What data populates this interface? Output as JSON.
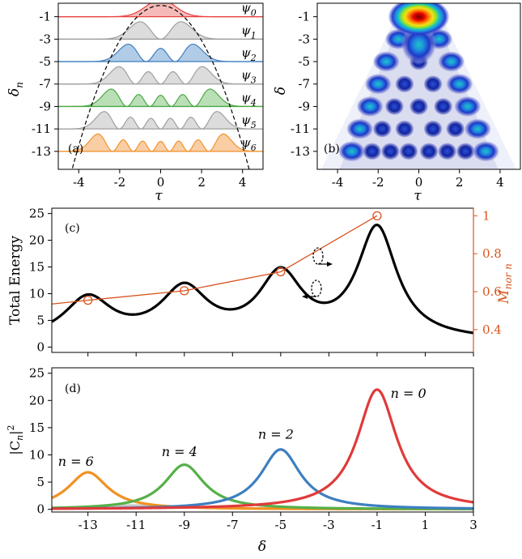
{
  "chart_data": [
    {
      "id": "a",
      "type": "line",
      "panel_label": "(a)",
      "xlabel": "τ",
      "ylabel": "δ",
      "ylabel_sub": "n",
      "xlim": [
        -5,
        5
      ],
      "ylim": [
        -14.6,
        0.2
      ],
      "xticks": [
        -4,
        -2,
        0,
        2,
        4
      ],
      "xtick_labels": [
        "-4",
        "-2",
        "0",
        "2",
        "4"
      ],
      "yticks": [
        -13,
        -11,
        -9,
        -7,
        -5,
        -3,
        -1
      ],
      "ytick_labels": [
        "-13",
        "-11",
        "-9",
        "-7",
        "-5",
        "-3",
        "-1"
      ],
      "potential": {
        "style": "dashed",
        "color": "#000000",
        "formula": "parabola",
        "vertex": [
          0,
          0
        ],
        "value_at_tau_4": -12.5
      },
      "series": [
        {
          "name": "ψ",
          "sub": "0",
          "n": 0,
          "baseline": -1,
          "color": "#e8413f",
          "fill": "#f4b3b0",
          "amplitude": 1.0
        },
        {
          "name": "ψ",
          "sub": "1",
          "n": 1,
          "baseline": -3,
          "color": "#a0a0a0",
          "fill": "#d8d8d8",
          "amplitude": 1.0
        },
        {
          "name": "ψ",
          "sub": "2",
          "n": 2,
          "baseline": -5,
          "color": "#3f7fbf",
          "fill": "#a9c6e3",
          "amplitude": 1.0
        },
        {
          "name": "ψ",
          "sub": "3",
          "n": 3,
          "baseline": -7,
          "color": "#a0a0a0",
          "fill": "#d8d8d8",
          "amplitude": 1.0
        },
        {
          "name": "ψ",
          "sub": "4",
          "n": 4,
          "baseline": -9,
          "color": "#4aa944",
          "fill": "#b3dcaf",
          "amplitude": 1.0
        },
        {
          "name": "ψ",
          "sub": "5",
          "n": 5,
          "baseline": -11,
          "color": "#a0a0a0",
          "fill": "#d8d8d8",
          "amplitude": 1.0
        },
        {
          "name": "ψ",
          "sub": "6",
          "n": 6,
          "baseline": -13,
          "color": "#f2922b",
          "fill": "#f8c99a",
          "amplitude": 1.0
        }
      ]
    },
    {
      "id": "b",
      "type": "heatmap",
      "panel_label": "(b)",
      "xlabel": "τ",
      "ylabel": "δ",
      "xlim": [
        -5,
        5
      ],
      "ylim": [
        -14.6,
        0.2
      ],
      "xticks": [
        -4,
        -2,
        0,
        2,
        4
      ],
      "xtick_labels": [
        "-4",
        "-2",
        "0",
        "2",
        "4"
      ],
      "yticks": [
        -13,
        -11,
        -9,
        -7,
        -5,
        -3,
        -1
      ],
      "ytick_labels": [
        "-13",
        "-11",
        "-9",
        "-7",
        "-5",
        "-3",
        "-1"
      ],
      "colormap": [
        "#ffffff",
        "#e6e6f2",
        "#9ea6d8",
        "#2a3fd0",
        "#0a2aa8",
        "#1f8be0",
        "#19c7c0",
        "#9fe020",
        "#f4e01a",
        "#ff7a00",
        "#e60000",
        "#6e0000"
      ],
      "peak": {
        "tau": 0,
        "delta": -1,
        "intensity": 1.0
      }
    },
    {
      "id": "c",
      "type": "line",
      "panel_label": "(c)",
      "xlim": [
        -14.5,
        3
      ],
      "ylim": [
        -1,
        26
      ],
      "ylabel": "Total Energy",
      "yticks": [
        0,
        5,
        10,
        15,
        20,
        25
      ],
      "ytick_labels": [
        "0",
        "5",
        "10",
        "15",
        "20",
        "25"
      ],
      "xticks": [
        -13,
        -11,
        -9,
        -7,
        -5,
        -3,
        -1,
        1,
        3
      ],
      "right_axis": {
        "label": "M",
        "label_sub": "nor n",
        "color": "#d9541e",
        "ylim": [
          0.28,
          1.04
        ],
        "yticks": [
          0.4,
          0.6,
          0.8,
          1.0
        ],
        "ytick_labels": [
          "0.4",
          "0.6",
          "0.8",
          "1"
        ]
      },
      "energy_peaks": [
        {
          "delta": -13,
          "height": 8.5,
          "width": 1.2
        },
        {
          "delta": -9,
          "height": 10.2,
          "width": 1.2
        },
        {
          "delta": -5,
          "height": 13.0,
          "width": 1.1
        },
        {
          "delta": -1,
          "height": 23.0,
          "width": 1.0
        }
      ],
      "energy_background": 1.2,
      "energy_color": "#000000",
      "m_series": {
        "color": "#d9541e",
        "x": [
          -14.5,
          -13,
          -9,
          -5,
          -1
        ],
        "y": [
          0.535,
          0.555,
          0.605,
          0.705,
          1.0
        ],
        "markers_at": [
          -13,
          -9,
          -5,
          -1
        ]
      }
    },
    {
      "id": "d",
      "type": "line",
      "panel_label": "(d)",
      "xlabel": "δ",
      "ylabel": "|C",
      "ylabel_sub": "n",
      "ylabel_tail": "|",
      "ylabel_sup": "2",
      "xlim": [
        -14.5,
        3
      ],
      "ylim": [
        -0.5,
        26
      ],
      "xticks": [
        -13,
        -11,
        -9,
        -7,
        -5,
        -3,
        -1,
        1,
        3
      ],
      "xtick_labels": [
        "-13",
        "-11",
        "-9",
        "-7",
        "-5",
        "-3",
        "-1",
        "1",
        "3"
      ],
      "yticks": [
        0,
        5,
        10,
        15,
        20,
        25
      ],
      "ytick_labels": [
        "0",
        "5",
        "10",
        "15",
        "20",
        "25"
      ],
      "series": [
        {
          "name": "n = 0",
          "center": -1,
          "peak": 22.0,
          "width": 1.0,
          "color": "#e03a3a"
        },
        {
          "name": "n = 2",
          "center": -5,
          "peak": 11.0,
          "width": 1.0,
          "color": "#3d7fbf"
        },
        {
          "name": "n = 4",
          "center": -9,
          "peak": 8.2,
          "width": 1.0,
          "color": "#55b048"
        },
        {
          "name": "n = 6",
          "center": -13,
          "peak": 6.8,
          "width": 1.0,
          "color": "#f39021"
        },
        {
          "name": "",
          "center": -11,
          "peak": 0.7,
          "width": 2.5,
          "color": "#c8c8c8"
        }
      ],
      "annotations": [
        {
          "text": "n = 0",
          "delta": 0.3,
          "value": 20.5
        },
        {
          "text": "n = 2",
          "delta": -5.2,
          "value": 13.0
        },
        {
          "text": "n = 4",
          "delta": -9.2,
          "value": 9.8
        },
        {
          "text": "n = 6",
          "delta": -13.5,
          "value": 8.0
        }
      ]
    }
  ]
}
